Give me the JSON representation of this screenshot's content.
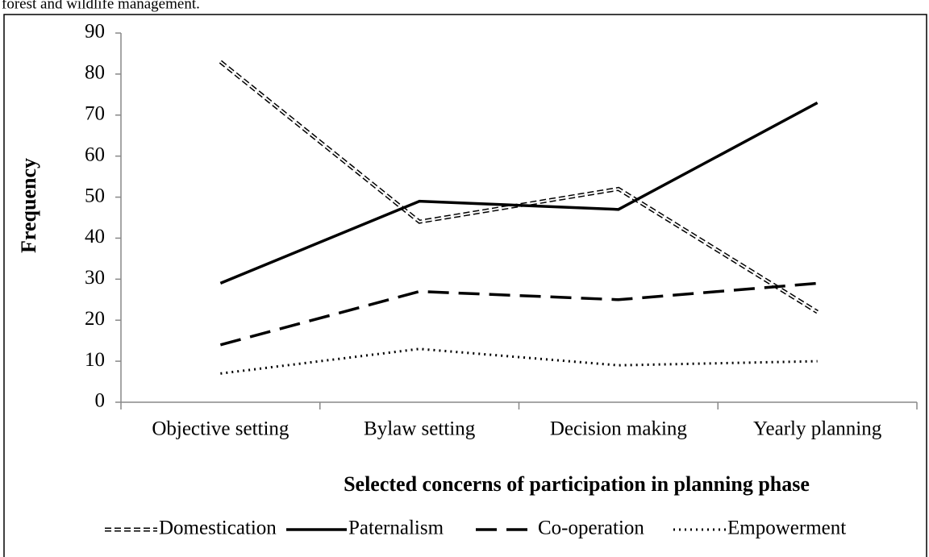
{
  "caption": "forest and wildlife management.",
  "chart_data": {
    "type": "line",
    "y_label": "Frequency",
    "x_label": "Selected concerns of participation in planning phase",
    "categories": [
      "Objective setting",
      "Bylaw setting",
      "Decision making",
      "Yearly planning"
    ],
    "series": [
      {
        "name": "Domestication",
        "color": "#000000",
        "style": "double-dash",
        "values": [
          83,
          44,
          52,
          22
        ]
      },
      {
        "name": "Paternalism",
        "color": "#000000",
        "style": "solid",
        "values": [
          29,
          49,
          47,
          73
        ]
      },
      {
        "name": "Co-operation",
        "color": "#000000",
        "style": "long-dash",
        "values": [
          14,
          27,
          25,
          29
        ]
      },
      {
        "name": "Empowerment",
        "color": "#000000",
        "style": "dotted",
        "values": [
          7,
          13,
          9,
          10
        ]
      }
    ],
    "ylim": [
      0,
      90
    ],
    "yticks": [
      0,
      10,
      20,
      30,
      40,
      50,
      60,
      70,
      80,
      90
    ],
    "grid": false,
    "legend": "bottom"
  }
}
